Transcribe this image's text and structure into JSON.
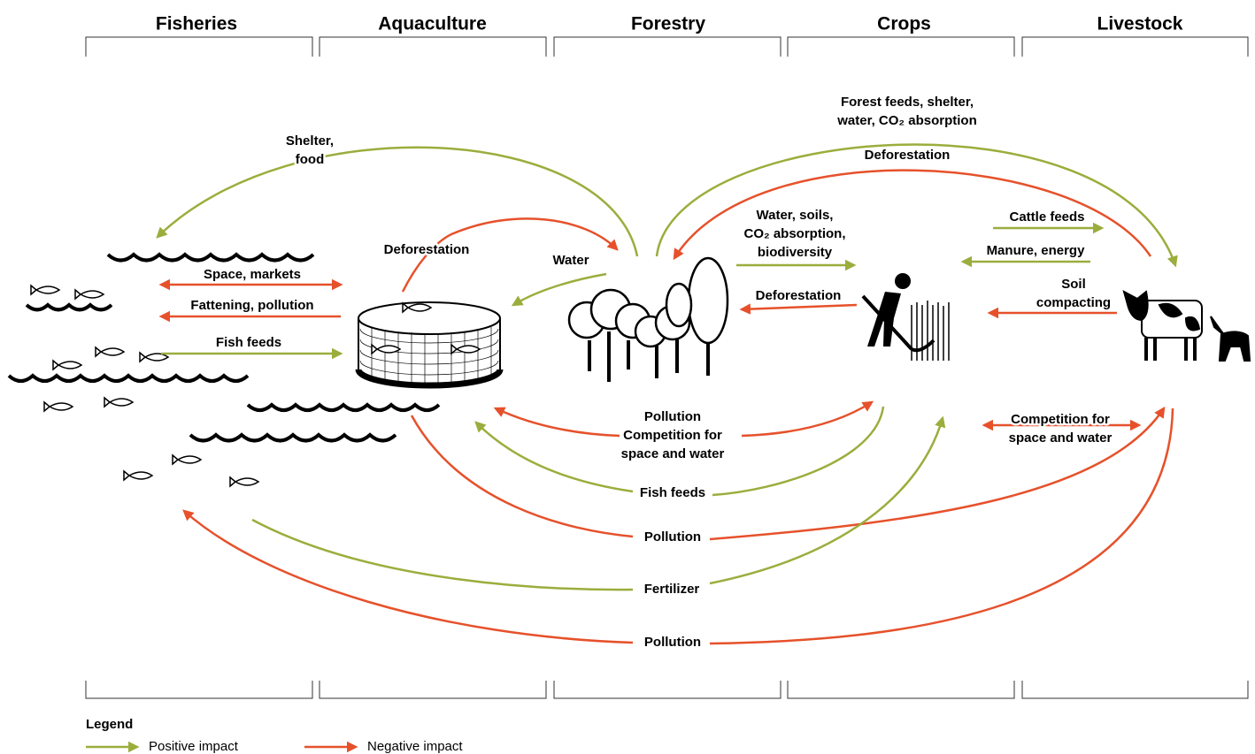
{
  "columns": [
    "Fisheries",
    "Aquaculture",
    "Forestry",
    "Crops",
    "Livestock"
  ],
  "edges": [
    {
      "label_lines": [
        "Shelter,",
        "food"
      ],
      "color": "#9bad3c"
    },
    {
      "label_lines": [
        "Deforestation"
      ],
      "color": "#e6512b"
    },
    {
      "label_lines": [
        "Water"
      ],
      "color": "#9bad3c"
    },
    {
      "label_lines": [
        "Forest feeds, shelter,",
        "water, CO₂ absorption"
      ],
      "color": "#9bad3c"
    },
    {
      "label_lines": [
        "Deforestation"
      ],
      "color": "#e6512b"
    },
    {
      "label_lines": [
        "Water, soils,",
        "CO₂ absorption,",
        "biodiversity"
      ],
      "color": "#9bad3c"
    },
    {
      "label_lines": [
        "Deforestation"
      ],
      "color": "#e6512b"
    },
    {
      "label_lines": [
        "Cattle feeds"
      ],
      "color": "#9bad3c"
    },
    {
      "label_lines": [
        "Manure, energy"
      ],
      "color": "#9bad3c"
    },
    {
      "label_lines": [
        "Soil",
        "compacting"
      ],
      "color": "#e6512b"
    },
    {
      "label_lines": [
        "Space, markets"
      ],
      "color": "#e6512b"
    },
    {
      "label_lines": [
        "Fattening, pollution"
      ],
      "color": "#e6512b"
    },
    {
      "label_lines": [
        "Fish feeds"
      ],
      "color": "#9bad3c"
    },
    {
      "label_lines": [
        "Pollution",
        "Competition for",
        "space and water"
      ],
      "color": "#e6512b"
    },
    {
      "label_lines": [
        "Fish feeds"
      ],
      "color": "#9bad3c"
    },
    {
      "label_lines": [
        "Pollution"
      ],
      "color": "#e6512b"
    },
    {
      "label_lines": [
        "Fertilizer"
      ],
      "color": "#9bad3c"
    },
    {
      "label_lines": [
        "Pollution"
      ],
      "color": "#e6512b"
    },
    {
      "label_lines": [
        "Competition for",
        "space and water"
      ],
      "color": "#e6512b"
    }
  ],
  "legend": {
    "title": "Legend",
    "items": [
      {
        "label": "Positive impact",
        "color": "#9bad3c"
      },
      {
        "label": "Negative impact",
        "color": "#e6512b"
      }
    ]
  }
}
